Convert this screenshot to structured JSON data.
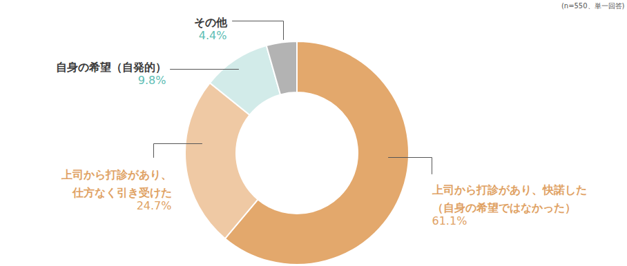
{
  "chart_data": {
    "type": "donut",
    "subtitle": "(n=550、単一回答)",
    "categories": [
      "上司から打診があり、快諾した\n（自身の希望ではなかった）",
      "上司から打診があり、\n仕方なく引き受けた",
      "自身の希望（自発的）",
      "その他"
    ],
    "values": [
      61.1,
      24.7,
      9.8,
      4.4
    ],
    "value_labels": [
      "61.1%",
      "24.7%",
      "9.8%",
      "4.4%"
    ],
    "colors": [
      "#e3a86c",
      "#efc9a4",
      "#d2ebe9",
      "#b3b3b3"
    ],
    "data_labels": true
  }
}
